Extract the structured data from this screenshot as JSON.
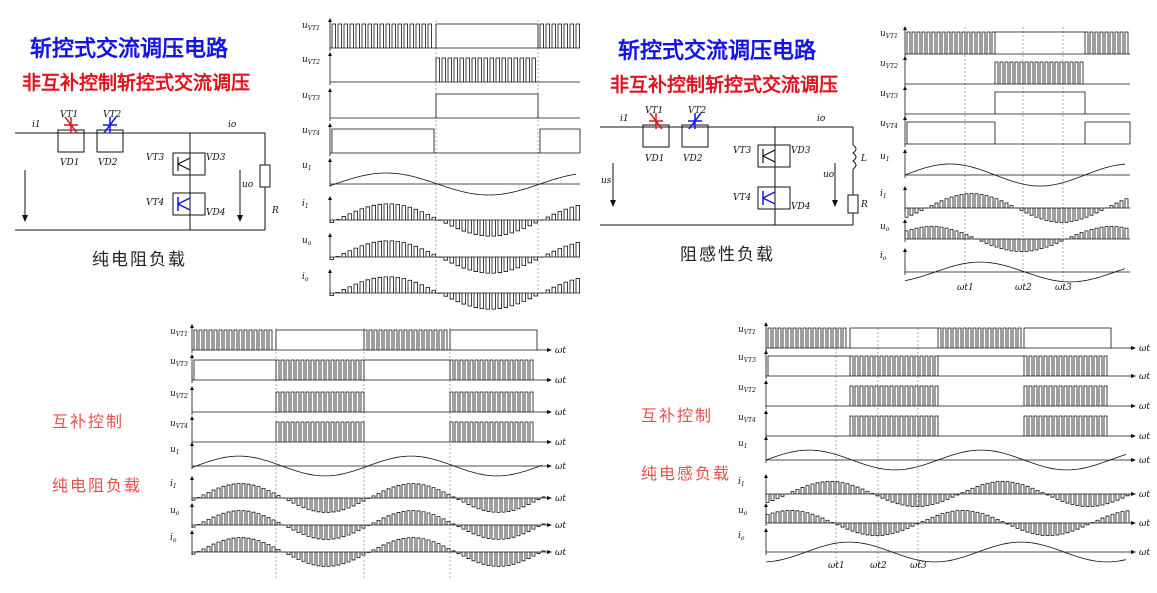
{
  "colors": {
    "blue": "#1414e6",
    "red": "#e0141e",
    "note_red": "#e8504a",
    "ink": "#111111",
    "grid": "#888888"
  },
  "top_left": {
    "title": "斩控式交流调压电路",
    "subtitle": "非互补控制斩控式交流调压",
    "caption": "纯电阻负载",
    "circuit_labels": [
      "VT1",
      "VT2",
      "VD1",
      "VD2",
      "VT3",
      "VD3",
      "VT4",
      "VD4",
      "i1",
      "io",
      "uo",
      "R"
    ],
    "wave_labels": [
      "uVT1",
      "uVT2",
      "uVT3",
      "uVT4",
      "u1",
      "i1",
      "uo",
      "io"
    ]
  },
  "top_right": {
    "title": "斩控式交流调压电路",
    "subtitle": "非互补控制斩控式交流调压",
    "caption": "阻感性负载",
    "circuit_labels": [
      "VT1",
      "VT2",
      "VD1",
      "VD2",
      "VT3",
      "VD3",
      "VT4",
      "VD4",
      "i1",
      "io",
      "us",
      "uo",
      "L",
      "R"
    ],
    "wave_labels": [
      "uVT1",
      "uVT2",
      "uVT3",
      "uVT4",
      "u1",
      "i1",
      "uo",
      "io"
    ],
    "time_marks": [
      "ωt1",
      "ωt2",
      "ωt3"
    ]
  },
  "bottom_left": {
    "note1": "互补控制",
    "note2": "纯电阻负载",
    "wave_labels": [
      "uVT1",
      "uVT3",
      "uVT2",
      "uVT4",
      "u1",
      "i1",
      "uo",
      "io"
    ],
    "axis": "ωt"
  },
  "bottom_right": {
    "note1": "互补控制",
    "note2": "纯电感负载",
    "wave_labels": [
      "uVT1",
      "uVT3",
      "uVT2",
      "uVT4",
      "u1",
      "i1",
      "uo",
      "io"
    ],
    "axis": "ωt",
    "time_marks": [
      "ωt1",
      "ωt2",
      "ωt3"
    ]
  }
}
